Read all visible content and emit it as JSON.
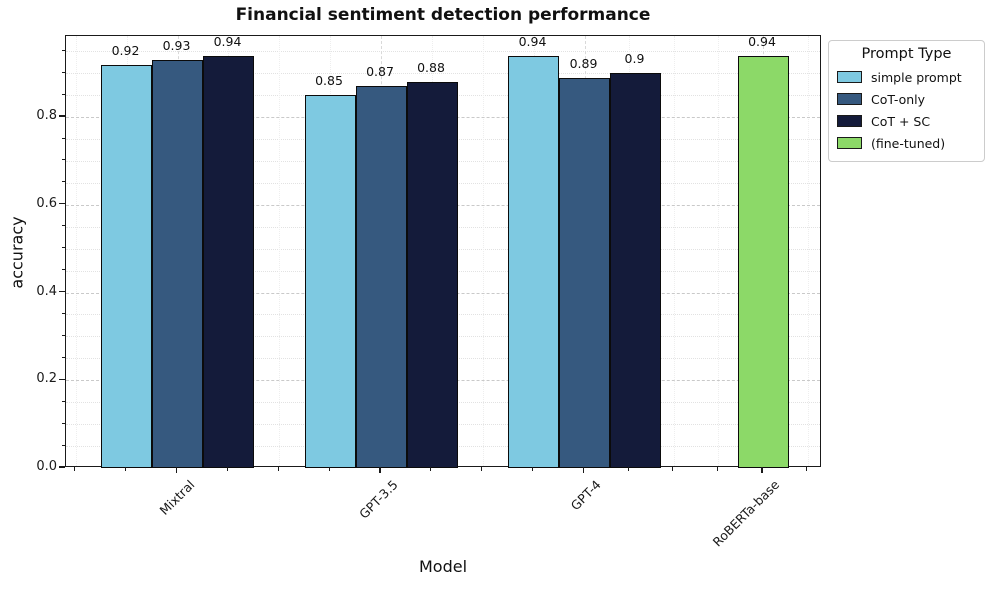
{
  "chart_data": {
    "type": "bar",
    "title": "Financial sentiment detection performance",
    "xlabel": "Model",
    "ylabel": "accuracy",
    "categories": [
      "Mixtral",
      "GPT-3.5",
      "GPT-4",
      "RoBERTa-base"
    ],
    "series": [
      {
        "name": "simple prompt",
        "color": "#7ec9e1",
        "values": [
          0.92,
          0.85,
          0.94,
          null
        ]
      },
      {
        "name": "CoT-only",
        "color": "#36597f",
        "values": [
          0.93,
          0.87,
          0.89,
          null
        ]
      },
      {
        "name": "CoT + SC",
        "color": "#141b3a",
        "values": [
          0.94,
          0.88,
          0.9,
          null
        ]
      },
      {
        "name": "(fine-tuned)",
        "color": "#8cd968",
        "values": [
          null,
          null,
          null,
          0.94
        ]
      }
    ],
    "ylim": [
      0,
      0.985
    ],
    "y_major_ticks": [
      0.0,
      0.2,
      0.4,
      0.6,
      0.8
    ],
    "y_minor_step": 0.05,
    "grid": true,
    "bar_value_labels": true,
    "legend": {
      "title": "Prompt Type",
      "position": "top-right-outside"
    }
  }
}
